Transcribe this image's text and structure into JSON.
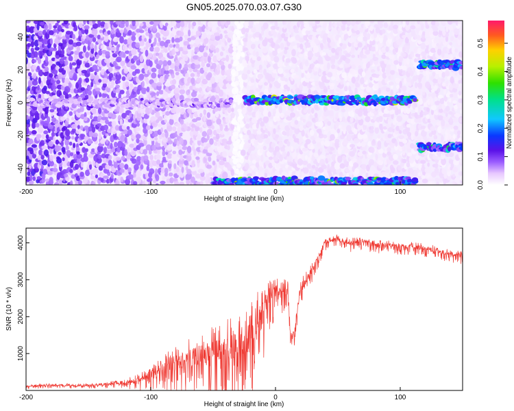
{
  "title": "GN05.2025.070.03.07.G30",
  "chart_data": [
    {
      "type": "heatmap",
      "xlabel": "Height of straight line (km)",
      "ylabel": "Frequency (Hz)",
      "xlim": [
        -200,
        150
      ],
      "ylim": [
        -50,
        50
      ],
      "x_ticks": [
        "-200",
        "-100",
        "0",
        "100"
      ],
      "y_ticks": [
        "-40",
        "-20",
        "0",
        "20",
        "40"
      ],
      "colorbar": {
        "label": "Normalized spectral amplitude",
        "range": [
          0,
          0.58
        ],
        "ticks": [
          "0.0",
          "0.1",
          "0.2",
          "0.3",
          "0.4",
          "0.5"
        ]
      },
      "features": [
        {
          "kind": "band",
          "freq_hz": 0,
          "x_from": -200,
          "x_to": -35,
          "amplitude": 0.12
        },
        {
          "kind": "band",
          "freq_hz": 1.5,
          "x_from": -25,
          "x_to": 112,
          "amplitude": 0.45
        },
        {
          "kind": "band",
          "freq_hz": -48,
          "x_from": -50,
          "x_to": 112,
          "amplitude": 0.4
        },
        {
          "kind": "band",
          "freq_hz": 23,
          "x_from": 115,
          "x_to": 150,
          "amplitude": 0.4
        },
        {
          "kind": "band",
          "freq_hz": -27,
          "x_from": 115,
          "x_to": 150,
          "amplitude": 0.35
        },
        {
          "kind": "gap",
          "x_center": -30,
          "x_width": 8
        }
      ]
    },
    {
      "type": "line",
      "xlabel": "Height of straight line (km)",
      "ylabel": "SNR (10 * v/v)",
      "xlim": [
        -200,
        150
      ],
      "ylim": [
        0,
        4400
      ],
      "x_ticks": [
        "-200",
        "-100",
        "0",
        "100"
      ],
      "y_ticks": [
        "1000",
        "2000",
        "3000",
        "4000"
      ],
      "series": [
        {
          "color": "#ef3a33",
          "x": [
            -200,
            -180,
            -160,
            -140,
            -125,
            -110,
            -100,
            -90,
            -80,
            -70,
            -60,
            -50,
            -40,
            -30,
            -20,
            -15,
            -10,
            -5,
            0,
            5,
            10,
            12,
            15,
            20,
            30,
            40,
            50,
            60,
            70,
            80,
            90,
            100,
            110,
            120,
            130,
            140,
            150
          ],
          "y": [
            120,
            150,
            130,
            160,
            200,
            280,
            480,
            620,
            760,
            860,
            950,
            1050,
            1150,
            1250,
            1450,
            1700,
            2150,
            2500,
            2700,
            2600,
            2750,
            1500,
            1550,
            2750,
            3300,
            4050,
            4100,
            4000,
            4050,
            3950,
            3950,
            3900,
            3900,
            3850,
            3800,
            3700,
            3650
          ],
          "noise": [
            60,
            70,
            70,
            80,
            120,
            250,
            400,
            500,
            700,
            800,
            900,
            1000,
            1100,
            1200,
            1300,
            1400,
            1200,
            700,
            600,
            500,
            500,
            300,
            300,
            400,
            250,
            200,
            200,
            200,
            200,
            180,
            180,
            180,
            180,
            180,
            180,
            180,
            180
          ]
        }
      ]
    }
  ]
}
